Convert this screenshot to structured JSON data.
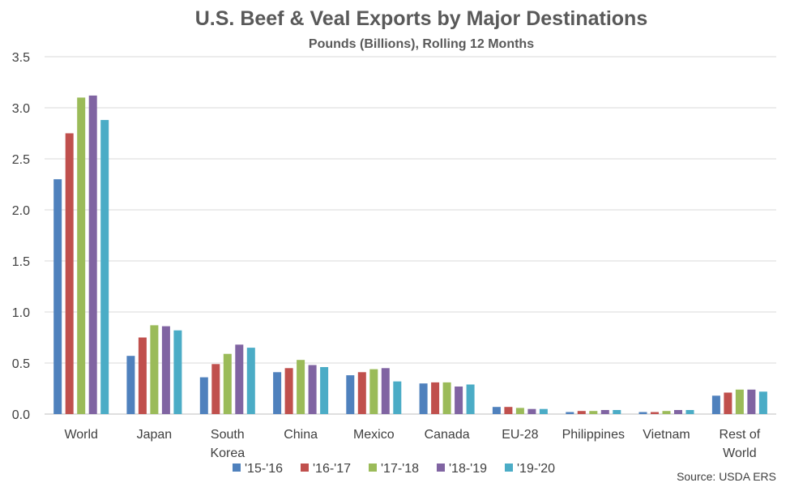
{
  "chart_data": {
    "type": "bar",
    "title": "U.S. Beef & Veal Exports by Major Destinations",
    "subtitle": "Pounds (Billions), Rolling 12 Months",
    "xlabel": "",
    "ylabel": "",
    "ylim": [
      0,
      3.5
    ],
    "yticks": [
      "0.0",
      "0.5",
      "1.0",
      "1.5",
      "2.0",
      "2.5",
      "3.0",
      "3.5"
    ],
    "grid": true,
    "legend_position": "bottom",
    "categories": [
      [
        "World"
      ],
      [
        "Japan"
      ],
      [
        "South",
        "Korea"
      ],
      [
        "China"
      ],
      [
        "Mexico"
      ],
      [
        "Canada"
      ],
      [
        "EU-28"
      ],
      [
        "Philippines"
      ],
      [
        "Vietnam"
      ],
      [
        "Rest of",
        "World"
      ]
    ],
    "series": [
      {
        "name": "'15-'16",
        "color": "#4F81BD",
        "values": [
          2.3,
          0.57,
          0.36,
          0.41,
          0.38,
          0.3,
          0.07,
          0.02,
          0.02,
          0.18
        ]
      },
      {
        "name": "'16-'17",
        "color": "#C0504D",
        "values": [
          2.75,
          0.75,
          0.49,
          0.45,
          0.41,
          0.31,
          0.07,
          0.03,
          0.02,
          0.21
        ]
      },
      {
        "name": "'17-'18",
        "color": "#9BBB59",
        "values": [
          3.1,
          0.87,
          0.59,
          0.53,
          0.44,
          0.31,
          0.06,
          0.03,
          0.03,
          0.24
        ]
      },
      {
        "name": "'18-'19",
        "color": "#8064A2",
        "values": [
          3.12,
          0.86,
          0.68,
          0.48,
          0.45,
          0.27,
          0.05,
          0.04,
          0.04,
          0.24
        ]
      },
      {
        "name": "'19-'20",
        "color": "#4BACC6",
        "values": [
          2.88,
          0.82,
          0.65,
          0.46,
          0.32,
          0.29,
          0.05,
          0.04,
          0.04,
          0.22
        ]
      }
    ],
    "source": "Source: USDA ERS"
  }
}
